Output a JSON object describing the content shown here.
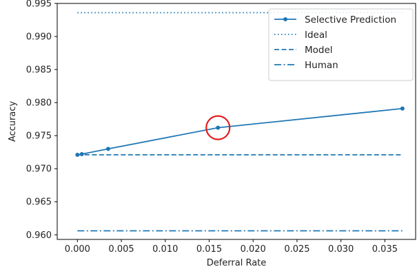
{
  "chart_data": {
    "type": "line",
    "xlabel": "Deferral Rate",
    "ylabel": "Accuracy",
    "xlim": [
      -0.0023,
      0.0385
    ],
    "ylim": [
      0.9593,
      0.995
    ],
    "xticks": [
      0.0,
      0.005,
      0.01,
      0.015,
      0.02,
      0.025,
      0.03,
      0.035
    ],
    "xtick_labels": [
      "0.000",
      "0.005",
      "0.010",
      "0.015",
      "0.020",
      "0.025",
      "0.030",
      "0.035"
    ],
    "yticks": [
      0.96,
      0.965,
      0.97,
      0.975,
      0.98,
      0.985,
      0.99,
      0.995
    ],
    "ytick_labels": [
      "0.960",
      "0.965",
      "0.970",
      "0.975",
      "0.980",
      "0.985",
      "0.990",
      "0.995"
    ],
    "grid": false,
    "legend_position": "top-right",
    "series": [
      {
        "name": "Selective Prediction",
        "style": "solid-markers",
        "color": "#1f77b4",
        "x": [
          0.0,
          0.0005,
          0.0035,
          0.016,
          0.037
        ],
        "y": [
          0.9721,
          0.9722,
          0.973,
          0.9762,
          0.9791
        ]
      },
      {
        "name": "Ideal",
        "style": "dotted",
        "color": "#1f77b4",
        "x": [
          0.0,
          0.037
        ],
        "y": [
          0.9936,
          0.9936
        ]
      },
      {
        "name": "Model",
        "style": "dashed",
        "color": "#1f77b4",
        "x": [
          0.0,
          0.037
        ],
        "y": [
          0.9721,
          0.9721
        ]
      },
      {
        "name": "Human",
        "style": "dashdot",
        "color": "#1f77b4",
        "x": [
          0.0,
          0.037
        ],
        "y": [
          0.9606,
          0.9606
        ]
      }
    ],
    "annotations": [
      {
        "type": "circle",
        "color": "#e31a1c",
        "x": 0.016,
        "y": 0.9762
      }
    ]
  }
}
